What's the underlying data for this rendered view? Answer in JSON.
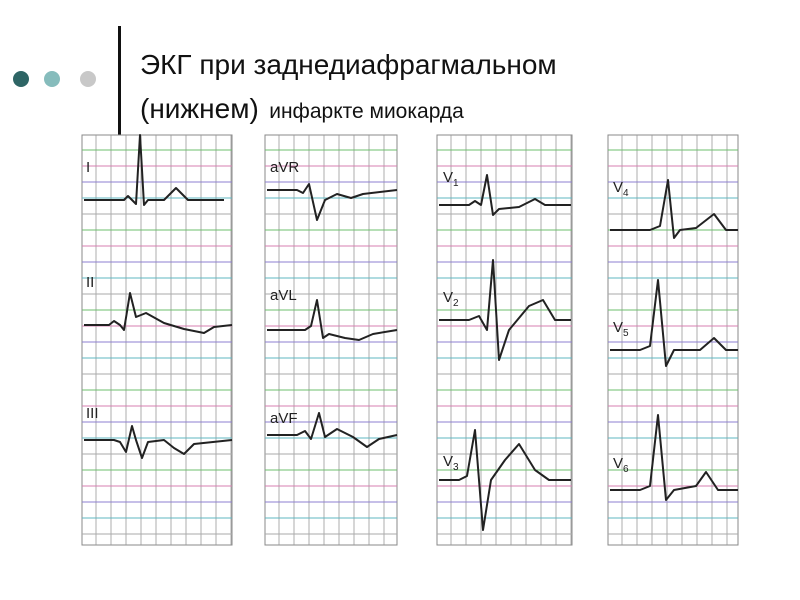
{
  "header": {
    "title_line1": "ЭКГ при заднедиафрагмальном",
    "title_line2_start": "(нижнем)",
    "title_line2_end": "инфаркте миокарда"
  },
  "leads": [
    {
      "name": "I"
    },
    {
      "name": "II"
    },
    {
      "name": "III"
    },
    {
      "name": "aVR"
    },
    {
      "name": "aVL"
    },
    {
      "name": "aVF"
    },
    {
      "name": "V",
      "sub": "1"
    },
    {
      "name": "V",
      "sub": "2"
    },
    {
      "name": "V",
      "sub": "3"
    },
    {
      "name": "V",
      "sub": "4"
    },
    {
      "name": "V",
      "sub": "5"
    },
    {
      "name": "V",
      "sub": "6"
    }
  ]
}
